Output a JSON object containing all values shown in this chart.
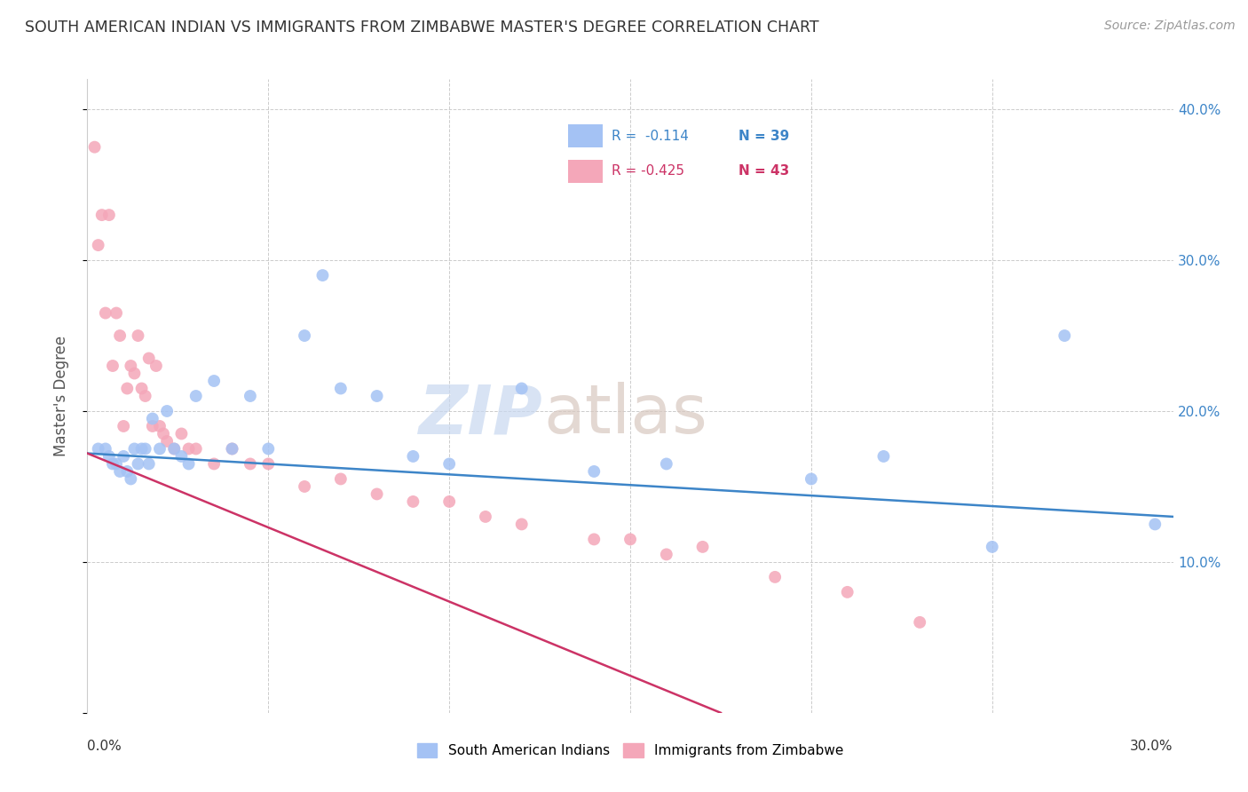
{
  "title": "SOUTH AMERICAN INDIAN VS IMMIGRANTS FROM ZIMBABWE MASTER'S DEGREE CORRELATION CHART",
  "source": "Source: ZipAtlas.com",
  "ylabel": "Master's Degree",
  "xmin": 0.0,
  "xmax": 0.3,
  "ymin": 0.0,
  "ymax": 0.42,
  "blue_color": "#a4c2f4",
  "pink_color": "#f4a7b9",
  "blue_line_color": "#3d85c8",
  "pink_line_color": "#cc3366",
  "blue_scatter_x": [
    0.003,
    0.005,
    0.006,
    0.007,
    0.008,
    0.009,
    0.01,
    0.011,
    0.012,
    0.013,
    0.014,
    0.015,
    0.016,
    0.017,
    0.018,
    0.02,
    0.022,
    0.024,
    0.026,
    0.028,
    0.03,
    0.035,
    0.04,
    0.045,
    0.05,
    0.06,
    0.065,
    0.07,
    0.08,
    0.09,
    0.1,
    0.12,
    0.14,
    0.16,
    0.2,
    0.22,
    0.25,
    0.27,
    0.295
  ],
  "blue_scatter_y": [
    0.175,
    0.175,
    0.17,
    0.165,
    0.165,
    0.16,
    0.17,
    0.16,
    0.155,
    0.175,
    0.165,
    0.175,
    0.175,
    0.165,
    0.195,
    0.175,
    0.2,
    0.175,
    0.17,
    0.165,
    0.21,
    0.22,
    0.175,
    0.21,
    0.175,
    0.25,
    0.29,
    0.215,
    0.21,
    0.17,
    0.165,
    0.215,
    0.16,
    0.165,
    0.155,
    0.17,
    0.11,
    0.25,
    0.125
  ],
  "pink_scatter_x": [
    0.002,
    0.003,
    0.004,
    0.005,
    0.006,
    0.007,
    0.008,
    0.009,
    0.01,
    0.011,
    0.012,
    0.013,
    0.014,
    0.015,
    0.016,
    0.017,
    0.018,
    0.019,
    0.02,
    0.021,
    0.022,
    0.024,
    0.026,
    0.028,
    0.03,
    0.035,
    0.04,
    0.045,
    0.05,
    0.06,
    0.07,
    0.08,
    0.09,
    0.1,
    0.11,
    0.12,
    0.14,
    0.15,
    0.16,
    0.17,
    0.19,
    0.21,
    0.23
  ],
  "pink_scatter_y": [
    0.375,
    0.31,
    0.33,
    0.265,
    0.33,
    0.23,
    0.265,
    0.25,
    0.19,
    0.215,
    0.23,
    0.225,
    0.25,
    0.215,
    0.21,
    0.235,
    0.19,
    0.23,
    0.19,
    0.185,
    0.18,
    0.175,
    0.185,
    0.175,
    0.175,
    0.165,
    0.175,
    0.165,
    0.165,
    0.15,
    0.155,
    0.145,
    0.14,
    0.14,
    0.13,
    0.125,
    0.115,
    0.115,
    0.105,
    0.11,
    0.09,
    0.08,
    0.06
  ],
  "blue_line_x": [
    0.0,
    0.3
  ],
  "blue_line_y": [
    0.172,
    0.13
  ],
  "pink_line_x": [
    0.0,
    0.175
  ],
  "pink_line_y": [
    0.172,
    0.0
  ],
  "watermark_zip": "ZIP",
  "watermark_atlas": "atlas"
}
